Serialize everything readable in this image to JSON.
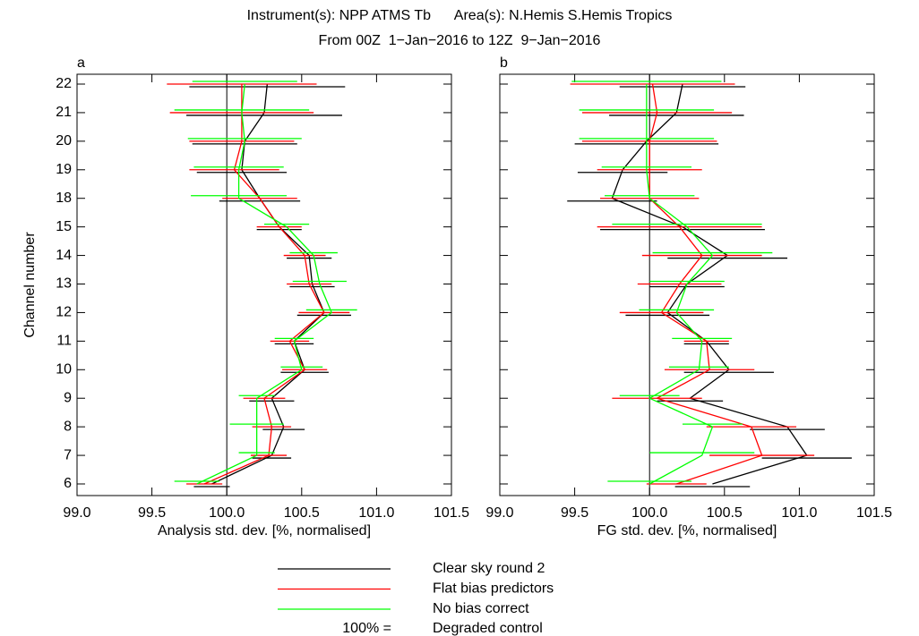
{
  "title": "Instrument(s): NPP ATMS Tb      Area(s): N.Hemis S.Hemis Tropics",
  "subtitle": "From 00Z  1−Jan−2016 to 12Z  9−Jan−2016",
  "reference_label": "100% =",
  "reference_name": "Degraded control",
  "chart_data": [
    {
      "type": "line",
      "panel": "a",
      "xlabel": "Analysis std. dev. [%, normalised]",
      "ylabel": "Channel number",
      "categories": [
        6,
        7,
        8,
        9,
        10,
        11,
        12,
        13,
        14,
        15,
        18,
        19,
        20,
        21,
        22
      ],
      "xlim": [
        99.0,
        101.5
      ],
      "xticks": [
        {
          "value": 99.0,
          "label": "99.0"
        },
        {
          "value": 99.5,
          "label": "99.5"
        },
        {
          "value": 100.0,
          "label": "100.0"
        },
        {
          "value": 100.5,
          "label": "100.5"
        },
        {
          "value": 101.0,
          "label": "101.0"
        },
        {
          "value": 101.5,
          "label": "101.5"
        }
      ],
      "reference": 100,
      "series": [
        {
          "name": "Clear sky round 2",
          "color": "#000000",
          "values": [
            99.9,
            100.3,
            100.38,
            100.3,
            100.52,
            100.45,
            100.65,
            100.57,
            100.55,
            100.35,
            100.22,
            100.1,
            100.12,
            100.25,
            100.27
          ],
          "errors": [
            0.12,
            0.13,
            0.14,
            0.15,
            0.16,
            0.13,
            0.18,
            0.15,
            0.15,
            0.15,
            0.27,
            0.3,
            0.35,
            0.52,
            0.52
          ]
        },
        {
          "name": "Flat bias predictors",
          "color": "#ff0000",
          "values": [
            99.85,
            100.28,
            100.3,
            100.25,
            100.52,
            100.42,
            100.65,
            100.55,
            100.52,
            100.35,
            100.22,
            100.05,
            100.1,
            100.1,
            100.1
          ],
          "errors": [
            0.12,
            0.12,
            0.13,
            0.14,
            0.15,
            0.13,
            0.17,
            0.15,
            0.14,
            0.15,
            0.25,
            0.3,
            0.35,
            0.48,
            0.5
          ]
        },
        {
          "name": "No bias correct",
          "color": "#00ff00",
          "values": [
            99.8,
            100.2,
            100.2,
            100.2,
            100.5,
            100.45,
            100.7,
            100.62,
            100.58,
            100.4,
            100.08,
            100.08,
            100.12,
            100.1,
            100.12
          ],
          "errors": [
            0.15,
            0.12,
            0.18,
            0.12,
            0.14,
            0.13,
            0.17,
            0.18,
            0.16,
            0.15,
            0.32,
            0.3,
            0.38,
            0.45,
            0.35
          ]
        }
      ]
    },
    {
      "type": "line",
      "panel": "b",
      "xlabel": "FG std. dev. [%, normalised]",
      "categories": [
        6,
        7,
        8,
        9,
        10,
        11,
        12,
        13,
        14,
        15,
        18,
        19,
        20,
        21,
        22
      ],
      "xlim": [
        99.0,
        101.5
      ],
      "xticks": [
        {
          "value": 99.0,
          "label": "99.0"
        },
        {
          "value": 99.5,
          "label": "99.5"
        },
        {
          "value": 100.0,
          "label": "100.0"
        },
        {
          "value": 100.5,
          "label": "100.5"
        },
        {
          "value": 101.0,
          "label": "101.0"
        },
        {
          "value": 101.5,
          "label": "101.5"
        }
      ],
      "reference": 100,
      "series": [
        {
          "color": "#000000",
          "values": [
            100.42,
            101.05,
            100.92,
            100.27,
            100.53,
            100.38,
            100.12,
            100.25,
            100.52,
            100.22,
            99.75,
            99.82,
            99.98,
            100.18,
            100.22
          ],
          "errors": [
            0.25,
            0.3,
            0.25,
            0.22,
            0.3,
            0.15,
            0.28,
            0.25,
            0.4,
            0.55,
            0.3,
            0.3,
            0.48,
            0.45,
            0.42
          ]
        },
        {
          "color": "#ff0000",
          "values": [
            100.18,
            100.75,
            100.68,
            100.05,
            100.4,
            100.38,
            100.08,
            100.2,
            100.35,
            100.2,
            100.0,
            100.0,
            100.0,
            100.05,
            100.02
          ],
          "errors": [
            0.2,
            0.35,
            0.3,
            0.3,
            0.3,
            0.15,
            0.28,
            0.28,
            0.4,
            0.55,
            0.33,
            0.35,
            0.45,
            0.5,
            0.55
          ]
        },
        {
          "color": "#00ff00",
          "values": [
            100.0,
            100.35,
            100.42,
            100.0,
            100.33,
            100.35,
            100.18,
            100.25,
            100.42,
            100.25,
            100.0,
            99.98,
            99.98,
            99.98,
            99.98
          ],
          "errors": [
            0.28,
            0.35,
            0.2,
            0.2,
            0.2,
            0.2,
            0.25,
            0.25,
            0.4,
            0.5,
            0.3,
            0.3,
            0.45,
            0.45,
            0.5
          ]
        }
      ]
    }
  ]
}
